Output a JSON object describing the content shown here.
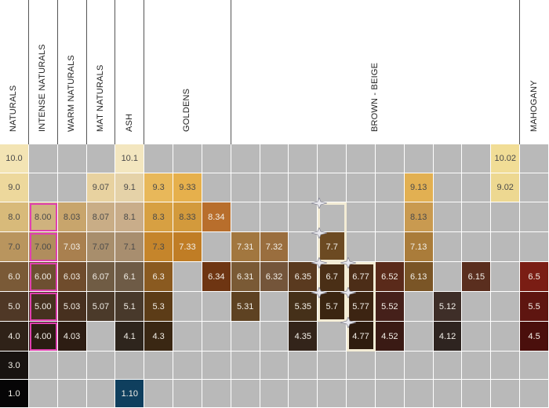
{
  "headers": [
    {
      "label": "NATURALS",
      "span": 1
    },
    {
      "label": "INTENSE NATURALS",
      "span": 1
    },
    {
      "label": "WARM NATURALS",
      "span": 1
    },
    {
      "label": "MAT NATURALS",
      "span": 1
    },
    {
      "label": "ASH",
      "span": 1
    },
    {
      "label": "GOLDENS",
      "span": 3
    },
    {
      "label": "BROWN - BEIGE",
      "span": 10
    },
    {
      "label": "MAHOGANY",
      "span": 1
    }
  ],
  "rows": [
    [
      "10.0",
      "",
      "",
      "",
      "10.1",
      "",
      "",
      "",
      "",
      "",
      "",
      "",
      "",
      "",
      "",
      "",
      "",
      "10.02",
      ""
    ],
    [
      "9.0",
      "",
      "",
      "9.07",
      "9.1",
      "9.3",
      "9.33",
      "",
      "",
      "",
      "",
      "",
      "",
      "",
      "9.13",
      "",
      "",
      "9.02",
      ""
    ],
    [
      "8.0",
      "8.00",
      "8.03",
      "8.07",
      "8.1",
      "8.3",
      "8.33",
      "8.34",
      "",
      "",
      "",
      "",
      "",
      "",
      "8.13",
      "",
      "",
      "",
      ""
    ],
    [
      "7.0",
      "7.00",
      "7.03",
      "7.07",
      "7.1",
      "7.3",
      "7.33",
      "",
      "7.31",
      "7.32",
      "",
      "7.7",
      "",
      "",
      "7.13",
      "",
      "",
      "",
      ""
    ],
    [
      "6.0",
      "6.00",
      "6.03",
      "6.07",
      "6.1",
      "6.3",
      "",
      "6.34",
      "6.31",
      "6.32",
      "6.35",
      "6.7",
      "6.77",
      "6.52",
      "6.13",
      "",
      "6.15",
      "",
      "6.5"
    ],
    [
      "5.0",
      "5.00",
      "5.03",
      "5.07",
      "5.1",
      "5.3",
      "",
      "",
      "5.31",
      "",
      "5.35",
      "5.7",
      "5.77",
      "5.52",
      "",
      "5.12",
      "",
      "",
      "5.5"
    ],
    [
      "4.0",
      "4.00",
      "4.03",
      "",
      "4.1",
      "4.3",
      "",
      "",
      "",
      "",
      "4.35",
      "",
      "4.77",
      "4.52",
      "",
      "4.12",
      "",
      "",
      "4.5"
    ],
    [
      "3.0",
      "",
      "",
      "",
      "",
      "",
      "",
      "",
      "",
      "",
      "",
      "",
      "",
      "",
      "",
      "",
      "",
      "",
      ""
    ],
    [
      "1.0",
      "",
      "",
      "",
      "1.10",
      "",
      "",
      "",
      "",
      "",
      "",
      "",
      "",
      "",
      "",
      "",
      "",
      "",
      ""
    ]
  ],
  "colors": {
    "empty": "#b9b9b9",
    "grid": "#ffffff",
    "pink_outline": "#e040b0",
    "cream_outline": "#f3ecd5",
    "header_divider": "#555555",
    "by_value": {
      "10.0": "#f3e4b4",
      "10.1": "#f3e6bf",
      "10.02": "#f1dd96",
      "9.0": "#edd89c",
      "9.07": "#e8d2a0",
      "9.1": "#e5d2a8",
      "9.3": "#e8b85a",
      "9.33": "#e6b04c",
      "9.13": "#e2b052",
      "9.02": "#edd891",
      "8.0": "#d8ba7a",
      "8.00": "#cfb27e",
      "8.03": "#c8a56c",
      "8.07": "#c9ad86",
      "8.1": "#c9ad8a",
      "8.3": "#d7a042",
      "8.33": "#d39a3c",
      "8.34": "#b86e2c",
      "8.13": "#c99a50",
      "7.0": "#b9955e",
      "7.00": "#b08d5d",
      "7.03": "#a9804f",
      "7.07": "#a88e6c",
      "7.1": "#a88e6f",
      "7.3": "#c5852b",
      "7.33": "#c07d25",
      "7.31": "#a2773f",
      "7.32": "#9a6e3e",
      "7.7": "#6c4a22",
      "7.13": "#aa7c3a",
      "6.0": "#7a5a37",
      "6.00": "#6d4f31",
      "6.03": "#6f4c2c",
      "6.07": "#705c44",
      "6.1": "#6e5b46",
      "6.3": "#8a5a20",
      "6.34": "#6e3512",
      "6.31": "#7a5a35",
      "6.32": "#74553a",
      "6.35": "#5a3a1f",
      "6.7": "#4a2f16",
      "6.77": "#4c2d17",
      "6.52": "#5a2a1a",
      "6.13": "#7a5526",
      "6.15": "#5a2e1e",
      "6.5": "#7a1d14",
      "5.0": "#4f3826",
      "5.00": "#45311f",
      "5.03": "#47301f",
      "5.07": "#4b3a2a",
      "5.1": "#48392b",
      "5.3": "#5c3c17",
      "5.31": "#5e4222",
      "5.35": "#453019",
      "5.7": "#3b2511",
      "5.77": "#3c2412",
      "5.52": "#45201a",
      "5.12": "#3e2e28",
      "5.5": "#5e1510",
      "4.0": "#2f2218",
      "4.00": "#2a1c12",
      "4.03": "#2d1d13",
      "4.1": "#2e251d",
      "4.3": "#3a2713",
      "4.35": "#33241a",
      "4.77": "#2e1c0f",
      "4.52": "#3a1a14",
      "4.12": "#2e2420",
      "4.5": "#4a0f0c",
      "3.0": "#181310",
      "1.0": "#060506",
      "1.10": "#0f3f5e"
    }
  },
  "highlight": {
    "pink_column": 1,
    "pink_rows": [
      2,
      3,
      4,
      5,
      6
    ],
    "cream_boxes": [
      {
        "col": 11,
        "rows": [
          2,
          3
        ]
      },
      {
        "col": 11,
        "rows": [
          4,
          5
        ]
      },
      {
        "col": 12,
        "rows": [
          4,
          5,
          6
        ]
      }
    ]
  }
}
